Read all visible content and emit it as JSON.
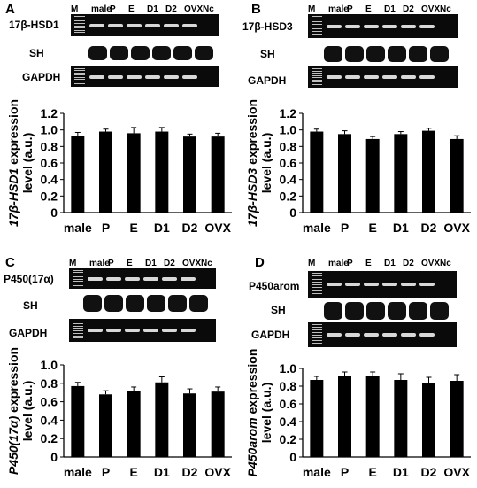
{
  "lanes": [
    "M",
    "male",
    "P",
    "E",
    "D1",
    "D2",
    "OVX",
    "Nc"
  ],
  "panels": [
    {
      "letter": "A",
      "gene_label": "17β-HSD1",
      "sh_label": "SH",
      "gapdh_label": "GAPDH",
      "ylabel": "17β-HSD1 expression level (a.u.)",
      "ylabel_italic": "17β-HSD1",
      "ylabel_rest": " expression",
      "ylabel_line2": "level (a.u.)",
      "ylim": [
        0,
        1.2
      ],
      "yticks": [
        "0",
        "0.2",
        "0.4",
        "0.6",
        "0.8",
        "1.0",
        "1.2"
      ]
    },
    {
      "letter": "B",
      "gene_label": "17β-HSD3",
      "sh_label": "SH",
      "gapdh_label": "GAPDH",
      "ylabel": "17β-HSD3 expression level (a.u.)",
      "ylabel_italic": "17β-HSD3",
      "ylabel_rest": " expression",
      "ylabel_line2": "level (a.u.)",
      "ylim": [
        0,
        1.2
      ],
      "yticks": [
        "0",
        "0.2",
        "0.4",
        "0.6",
        "0.8",
        "1.0",
        "1.2"
      ]
    },
    {
      "letter": "C",
      "gene_label": "P450(17α)",
      "sh_label": "SH",
      "gapdh_label": "GAPDH",
      "ylabel": "P450(17α) expression level (a.u.)",
      "ylabel_italic": "P450(17α)",
      "ylabel_rest": " expression",
      "ylabel_line2": "level (a.u.)",
      "ylim": [
        0,
        1.0
      ],
      "yticks": [
        "0",
        "0.2",
        "0.4",
        "0.6",
        "0.8",
        "1.0"
      ]
    },
    {
      "letter": "D",
      "gene_label": "P450arom",
      "sh_label": "SH",
      "gapdh_label": "GAPDH",
      "ylabel": "P450arom expression level (a.u.)",
      "ylabel_italic": "P450arom",
      "ylabel_rest": " expression",
      "ylabel_line2": "level (a.u.)",
      "ylim": [
        0,
        1.0
      ],
      "yticks": [
        "0",
        "0.2",
        "0.4",
        "0.6",
        "0.8",
        "1.0"
      ]
    }
  ],
  "chart_data": [
    {
      "type": "bar",
      "categories": [
        "male",
        "P",
        "E",
        "D1",
        "D2",
        "OVX"
      ],
      "values": [
        0.93,
        0.98,
        0.96,
        0.98,
        0.92,
        0.92
      ],
      "errors": [
        0.04,
        0.03,
        0.07,
        0.05,
        0.03,
        0.04
      ],
      "ylabel": "17β-HSD1 expression level (a.u.)",
      "ylim": [
        0,
        1.2
      ]
    },
    {
      "type": "bar",
      "categories": [
        "male",
        "P",
        "E",
        "D1",
        "D2",
        "OVX"
      ],
      "values": [
        0.98,
        0.95,
        0.89,
        0.95,
        0.99,
        0.89
      ],
      "errors": [
        0.03,
        0.04,
        0.03,
        0.03,
        0.03,
        0.04
      ],
      "ylabel": "17β-HSD3 expression level (a.u.)",
      "ylim": [
        0,
        1.2
      ]
    },
    {
      "type": "bar",
      "categories": [
        "male",
        "P",
        "E",
        "D1",
        "D2",
        "OVX"
      ],
      "values": [
        0.77,
        0.68,
        0.72,
        0.81,
        0.69,
        0.71
      ],
      "errors": [
        0.04,
        0.04,
        0.04,
        0.06,
        0.05,
        0.05
      ],
      "ylabel": "P450(17α) expression level (a.u.)",
      "ylim": [
        0,
        1.0
      ]
    },
    {
      "type": "bar",
      "categories": [
        "male",
        "P",
        "E",
        "D1",
        "D2",
        "OVX"
      ],
      "values": [
        0.87,
        0.92,
        0.91,
        0.87,
        0.84,
        0.86
      ],
      "errors": [
        0.04,
        0.04,
        0.05,
        0.07,
        0.06,
        0.07
      ],
      "ylabel": "P450arom expression level (a.u.)",
      "ylim": [
        0,
        1.0
      ]
    }
  ]
}
